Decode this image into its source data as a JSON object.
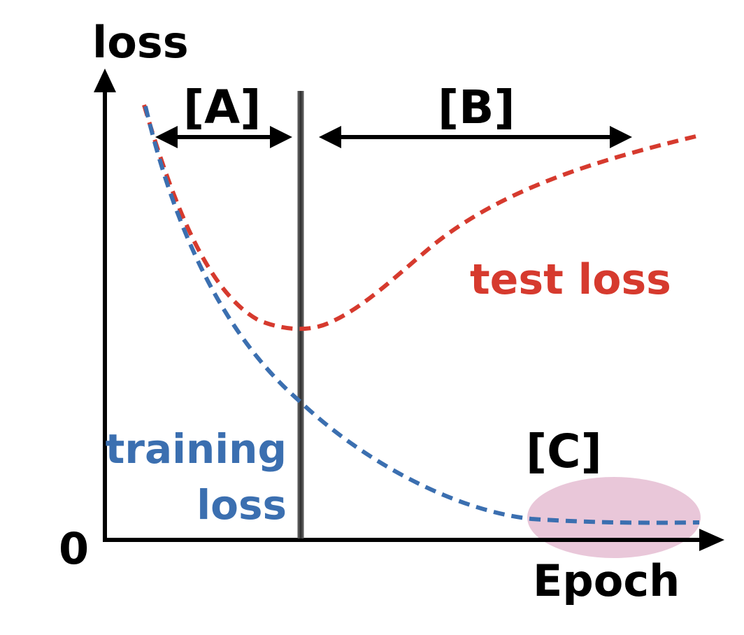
{
  "axes": {
    "y_label": "loss",
    "x_label": "Epoch",
    "origin_label": "0"
  },
  "regions": {
    "a_label": "[A]",
    "b_label": "[B]",
    "c_label": "[C]"
  },
  "curves": {
    "training": {
      "label_line1": "training",
      "label_line2": "loss",
      "color": "#3b6fb0"
    },
    "test": {
      "label": "test loss",
      "color": "#d63a2e"
    }
  },
  "colors": {
    "ink": "#000000",
    "divider": "#555555",
    "highlight": "#e2b4cc"
  }
}
